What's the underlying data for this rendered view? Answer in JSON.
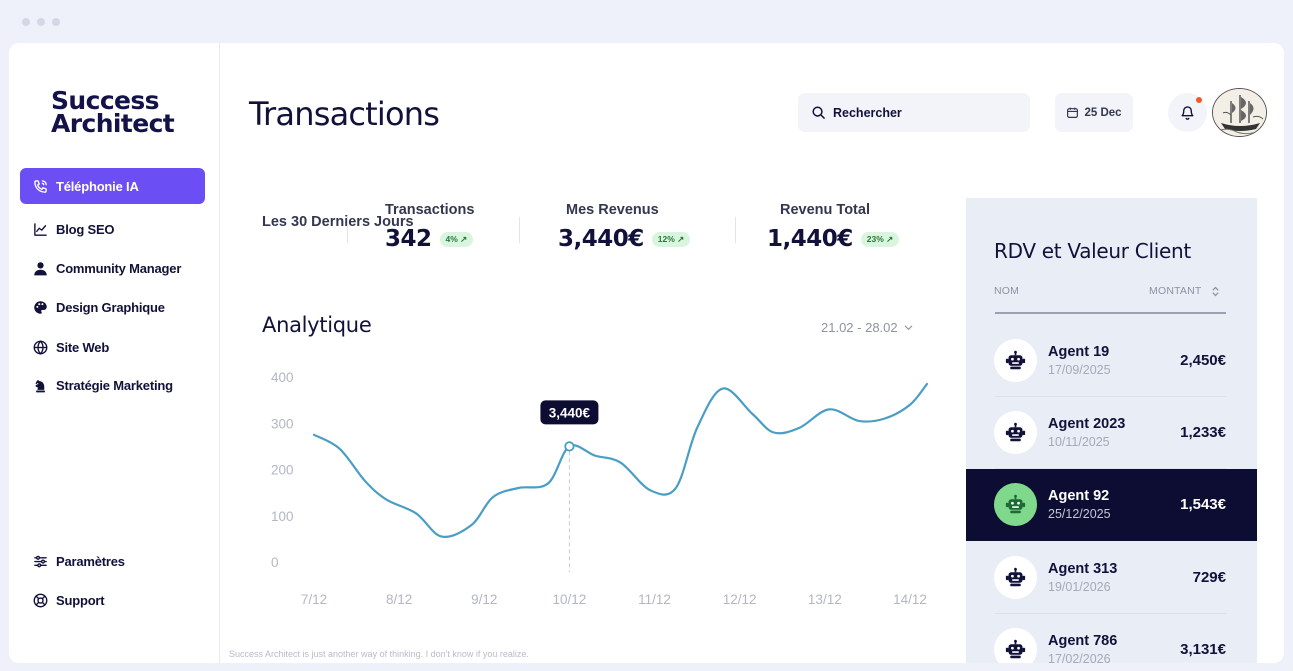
{
  "brand": {
    "line1": "Success",
    "line2": "Architect"
  },
  "nav": {
    "items": [
      {
        "label": "Téléphonie IA",
        "icon": "phone-icon",
        "active": true
      },
      {
        "label": "Blog SEO",
        "icon": "trending-chart-icon"
      },
      {
        "label": "Community Manager",
        "icon": "user-icon"
      },
      {
        "label": "Design Graphique",
        "icon": "palette-icon"
      },
      {
        "label": "Site Web",
        "icon": "globe-icon"
      },
      {
        "label": "Stratégie Marketing",
        "icon": "chess-knight-icon"
      }
    ],
    "bottom": [
      {
        "label": "Paramètres",
        "icon": "sliders-icon"
      },
      {
        "label": "Support",
        "icon": "lifebuoy-icon"
      }
    ]
  },
  "footer": {
    "text": "Success Architect is just another way of thinking. I don't know if you realize."
  },
  "header": {
    "title": "Transactions",
    "search_placeholder": "Rechercher",
    "date": "25 Dec",
    "has_notification": true
  },
  "stats": {
    "period": "Les 30 Derniers Jours",
    "items": [
      {
        "label": "Transactions",
        "value": "342",
        "change": "4% ↗"
      },
      {
        "label": "Mes Revenus",
        "value": "3,440€",
        "change": "12% ↗"
      },
      {
        "label": "Revenu Total",
        "value": "1,440€",
        "change": "23% ↗"
      }
    ]
  },
  "analytics": {
    "title": "Analytique",
    "range": "21.02 - 28.02"
  },
  "chart_data": {
    "type": "line",
    "categories": [
      "7/12",
      "8/12",
      "9/12",
      "10/12",
      "11/12",
      "12/12",
      "13/12",
      "14/12"
    ],
    "series": [
      {
        "x": [
          7.0,
          7.3,
          7.6,
          7.85,
          8.2,
          8.5,
          8.85,
          9.1,
          9.4,
          9.75,
          10.0,
          10.3,
          10.6,
          10.95,
          11.25,
          11.5,
          11.8,
          12.15,
          12.4,
          12.7,
          13.05,
          13.4,
          13.7,
          14.0,
          14.2
        ],
        "values": [
          275,
          245,
          175,
          135,
          105,
          55,
          80,
          140,
          160,
          170,
          250,
          230,
          215,
          155,
          160,
          290,
          375,
          320,
          280,
          290,
          330,
          305,
          310,
          340,
          385
        ]
      }
    ],
    "yticks": [
      0,
      100,
      200,
      300,
      400
    ],
    "ylim": [
      0,
      400
    ],
    "xlim": [
      7,
      14.2
    ],
    "highlight": {
      "x": 10.0,
      "value": 250,
      "label": "3,440€"
    },
    "line_color": "#4a9ec4"
  },
  "panel": {
    "title": "RDV et Valeur Client",
    "col_name": "NOM",
    "col_amount": "MONTANT",
    "rows": [
      {
        "name": "Agent 19",
        "date": "17/09/2025",
        "amount": "2,450€",
        "selected": false
      },
      {
        "name": "Agent 2023",
        "date": "10/11/2025",
        "amount": "1,233€",
        "selected": false
      },
      {
        "name": "Agent  92",
        "date": "25/12/2025",
        "amount": "1,543€",
        "selected": true
      },
      {
        "name": "Agent 313",
        "date": "19/01/2026",
        "amount": "729€",
        "selected": false
      },
      {
        "name": "Agent 786",
        "date": "17/02/2026",
        "amount": "3,131€",
        "selected": false
      }
    ]
  },
  "colors": {
    "accent": "#6b4ff5",
    "dark": "#0d0c33",
    "positive": "#d9f5de",
    "selected_icon": "#7fd88c"
  }
}
